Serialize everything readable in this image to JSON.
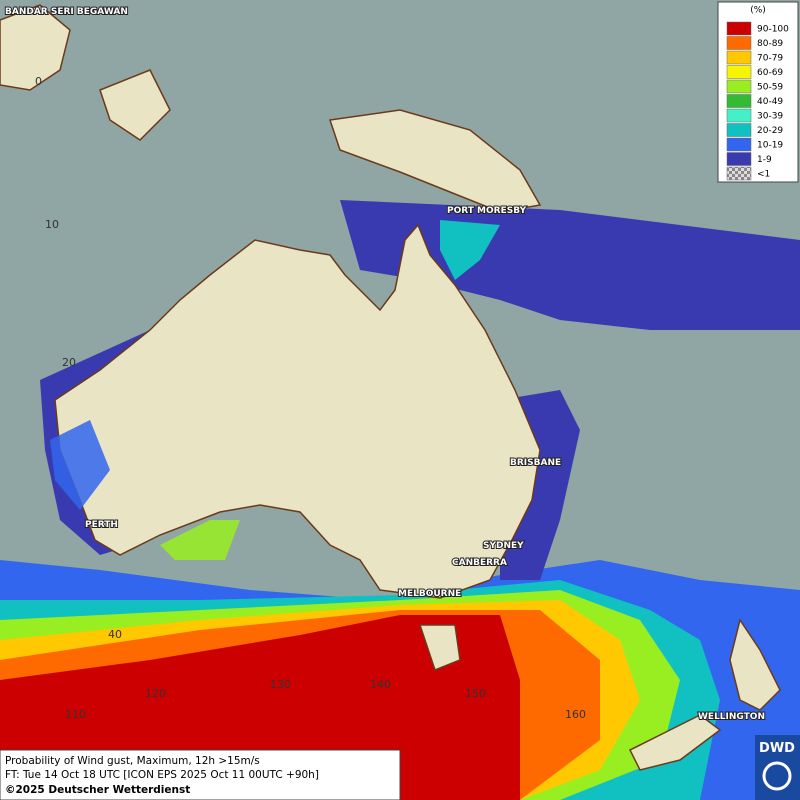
{
  "legend": {
    "title": "(%)",
    "items": [
      {
        "label": "90-100",
        "color": "#cc0000"
      },
      {
        "label": "80-89",
        "color": "#ff6a00"
      },
      {
        "label": "70-79",
        "color": "#ffc800"
      },
      {
        "label": "60-69",
        "color": "#f5f500"
      },
      {
        "label": "50-59",
        "color": "#99ee22"
      },
      {
        "label": "40-49",
        "color": "#33bb33"
      },
      {
        "label": "30-39",
        "color": "#44f0c8"
      },
      {
        "label": "20-29",
        "color": "#11c0c0"
      },
      {
        "label": "10-19",
        "color": "#3366ee"
      },
      {
        "label": "1-9",
        "color": "#3a3ab0"
      },
      {
        "label": "<1",
        "color": "checker"
      }
    ]
  },
  "cities": [
    "BANDAR SERI BEGAWAN",
    "PORT MORESBY",
    "BRISBANE",
    "SYDNEY",
    "CANBERRA",
    "MELBOURNE",
    "PERTH",
    "WELLINGTON"
  ],
  "graticule_labels": [
    0,
    10,
    20,
    40,
    110,
    120,
    130,
    140,
    150,
    160
  ],
  "footer": [
    "Probability of Wind gust, Maximum, 12h >15m/s",
    "FT: Tue 14 Oct 18 UTC [ICON EPS 2025 Oct 11 00UTC +90h]",
    "©2025 Deutscher Wetterdienst"
  ],
  "logo": "DWD"
}
